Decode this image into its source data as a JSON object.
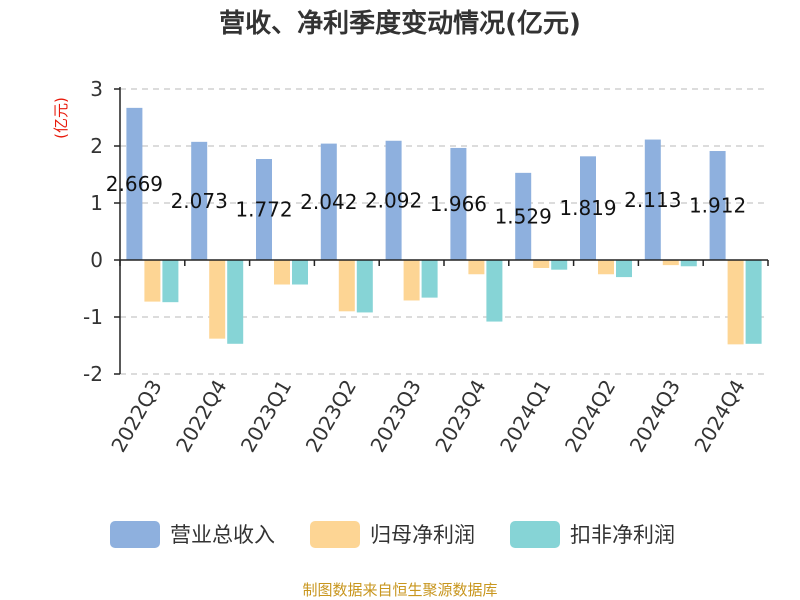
{
  "title": "营收、净利季度变动情况(亿元)",
  "unit_label": "(亿元)",
  "source": "制图数据来自恒生聚源数据库",
  "colors": {
    "revenue": "#8eb0de",
    "net_profit": "#fdd594",
    "deducted_profit": "#86d4d6"
  },
  "chart_data": {
    "type": "bar",
    "title": "营收、净利季度变动情况(亿元)",
    "ylabel": "(亿元)",
    "xlabel": "",
    "ylim": [
      -2,
      3
    ],
    "yticks": [
      3,
      2,
      1,
      0,
      -1,
      -2
    ],
    "grid": true,
    "legend_position": "bottom",
    "categories": [
      "2022Q3",
      "2022Q4",
      "2023Q1",
      "2023Q2",
      "2023Q3",
      "2023Q4",
      "2024Q1",
      "2024Q2",
      "2024Q3",
      "2024Q4"
    ],
    "series": [
      {
        "name": "营业总收入",
        "values": [
          2.669,
          2.073,
          1.772,
          2.042,
          2.092,
          1.966,
          1.529,
          1.819,
          2.113,
          1.912
        ],
        "labels": [
          "2.669",
          "2.073",
          "1.772",
          "2.042",
          "2.092",
          "1.966",
          "1.529",
          "1.819",
          "2.113",
          "1.912"
        ]
      },
      {
        "name": "归母净利润",
        "values": [
          -0.73,
          -1.38,
          -0.43,
          -0.9,
          -0.71,
          -0.25,
          -0.14,
          -0.25,
          -0.09,
          -1.48
        ]
      },
      {
        "name": "扣非净利润",
        "values": [
          -0.74,
          -1.47,
          -0.43,
          -0.92,
          -0.66,
          -1.08,
          -0.17,
          -0.3,
          -0.11,
          -1.47
        ]
      }
    ]
  }
}
